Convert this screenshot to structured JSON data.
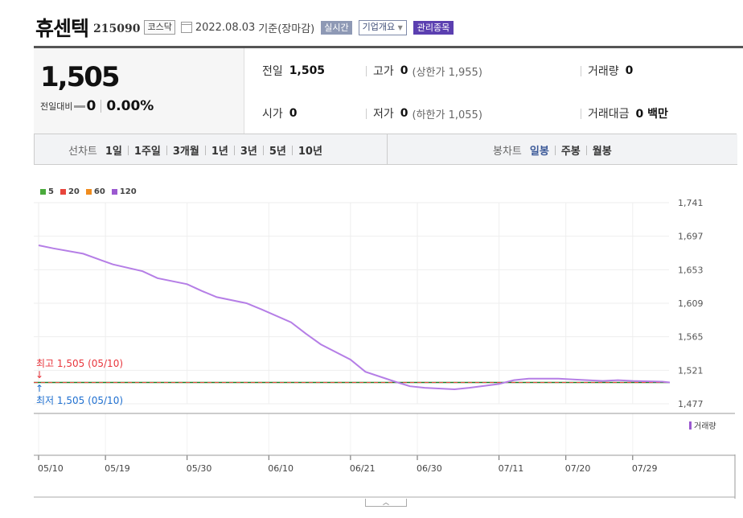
{
  "header": {
    "stock_name": "휴센텍",
    "stock_code": "215090",
    "market": "코스닥",
    "date": "2022.08.03",
    "basis": "기준(장마감)",
    "realtime_label": "실시간",
    "company_overview_label": "기업개요",
    "managed_stock_label": "관리종목"
  },
  "summary": {
    "price": "1,505",
    "change_label": "전일대비",
    "change_value": "0",
    "change_pct": "0.00%",
    "prev_close_label": "전일",
    "prev_close": "1,505",
    "high_label": "고가",
    "high": "0",
    "upper_limit": "(상한가 1,955)",
    "volume_label": "거래량",
    "volume": "0",
    "open_label": "시가",
    "open": "0",
    "low_label": "저가",
    "low": "0",
    "lower_limit": "(하한가 1,055)",
    "trade_value_label": "거래대금",
    "trade_value": "0 백만"
  },
  "tabs": {
    "line_chart_label": "선차트",
    "line_periods": [
      "1일",
      "1주일",
      "3개월",
      "1년",
      "3년",
      "5년",
      "10년"
    ],
    "candle_chart_label": "봉차트",
    "candle_periods": [
      "일봉",
      "주봉",
      "월봉"
    ],
    "selected_candle": "일봉"
  },
  "chart_data": {
    "type": "line",
    "legend": [
      {
        "name": "5",
        "color": "#4aaa3c"
      },
      {
        "name": "20",
        "color": "#e8453c"
      },
      {
        "name": "60",
        "color": "#f08c1e"
      },
      {
        "name": "120",
        "color": "#9b59d0"
      }
    ],
    "x_tick_labels": [
      "05/10",
      "05/19",
      "05/30",
      "06/10",
      "06/21",
      "06/30",
      "07/11",
      "07/20",
      "07/29"
    ],
    "y_tick_labels": [
      "1,741",
      "1,697",
      "1,653",
      "1,609",
      "1,565",
      "1,521",
      "1,477"
    ],
    "ylim": [
      1477,
      1741
    ],
    "price_line": {
      "value": 1505,
      "color": "#1f7a1f"
    },
    "series": [
      {
        "name": "120",
        "color": "#b57ee6",
        "x": [
          "05/10",
          "05/12",
          "05/16",
          "05/18",
          "05/20",
          "05/24",
          "05/26",
          "05/30",
          "06/01",
          "06/03",
          "06/07",
          "06/09",
          "06/13",
          "06/15",
          "06/17",
          "06/21",
          "06/23",
          "06/27",
          "06/29",
          "07/01",
          "07/05",
          "07/07",
          "07/11",
          "07/13",
          "07/15",
          "07/19",
          "07/21",
          "07/25",
          "07/27",
          "07/29",
          "08/02",
          "08/03"
        ],
        "values": [
          1685,
          1681,
          1674,
          1667,
          1660,
          1651,
          1642,
          1634,
          1625,
          1617,
          1609,
          1601,
          1584,
          1569,
          1555,
          1535,
          1519,
          1506,
          1500,
          1498,
          1496,
          1498,
          1503,
          1508,
          1510,
          1510,
          1509,
          1507,
          1508,
          1507,
          1506,
          1505
        ]
      }
    ],
    "high_annotation": "최고 1,505 (05/10)",
    "low_annotation": "최저 1,505 (05/10)",
    "volume_label": "거래량"
  }
}
